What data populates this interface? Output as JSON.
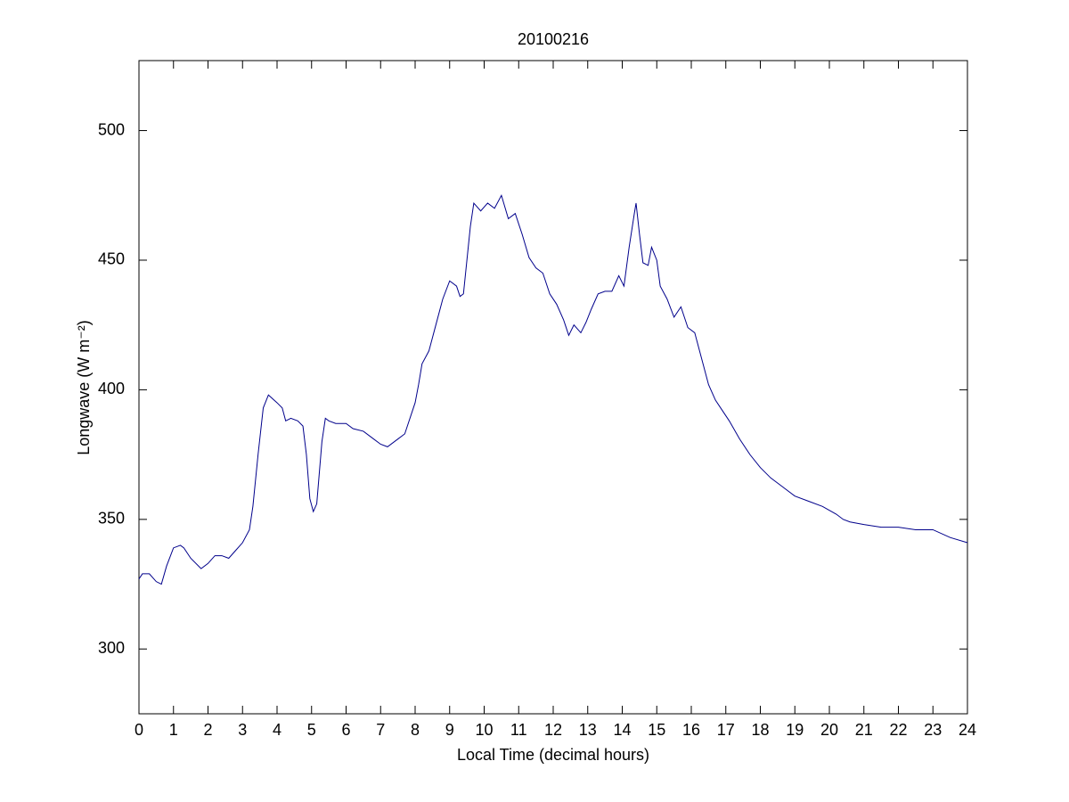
{
  "chart_data": {
    "type": "line",
    "title": "20100216",
    "xlabel": "Local Time (decimal hours)",
    "ylabel": "Longwave (W m⁻²)",
    "xlim": [
      0,
      24
    ],
    "ylim": [
      275,
      527
    ],
    "xticks": [
      0,
      1,
      2,
      3,
      4,
      5,
      6,
      7,
      8,
      9,
      10,
      11,
      12,
      13,
      14,
      15,
      16,
      17,
      18,
      19,
      20,
      21,
      22,
      23,
      24
    ],
    "yticks": [
      300,
      350,
      400,
      450,
      500
    ],
    "grid": false,
    "x": [
      0,
      0.1,
      0.3,
      0.5,
      0.65,
      0.8,
      1.0,
      1.2,
      1.3,
      1.5,
      1.8,
      2.0,
      2.2,
      2.4,
      2.6,
      2.8,
      3.0,
      3.2,
      3.3,
      3.45,
      3.6,
      3.75,
      4.0,
      4.15,
      4.25,
      4.4,
      4.6,
      4.75,
      4.85,
      4.95,
      5.05,
      5.15,
      5.3,
      5.4,
      5.5,
      5.7,
      6.0,
      6.2,
      6.5,
      6.8,
      7.0,
      7.2,
      7.5,
      7.7,
      7.9,
      8.0,
      8.1,
      8.2,
      8.4,
      8.6,
      8.8,
      9.0,
      9.2,
      9.3,
      9.4,
      9.5,
      9.6,
      9.7,
      9.9,
      10.1,
      10.3,
      10.5,
      10.7,
      10.9,
      11.1,
      11.3,
      11.5,
      11.7,
      11.9,
      12.1,
      12.3,
      12.45,
      12.6,
      12.8,
      12.95,
      13.1,
      13.3,
      13.5,
      13.7,
      13.9,
      14.05,
      14.2,
      14.35,
      14.4,
      14.5,
      14.6,
      14.75,
      14.85,
      15.0,
      15.1,
      15.3,
      15.5,
      15.7,
      15.9,
      16.1,
      16.3,
      16.5,
      16.7,
      16.9,
      17.1,
      17.4,
      17.7,
      18.0,
      18.3,
      18.6,
      19.0,
      19.4,
      19.8,
      20.2,
      20.4,
      20.6,
      21.0,
      21.5,
      22.0,
      22.5,
      23.0,
      23.5,
      24.0
    ],
    "series": [
      {
        "color": "#00008b",
        "values": [
          327,
          329,
          329,
          326,
          325,
          332,
          339,
          340,
          339,
          335,
          331,
          333,
          336,
          336,
          335,
          338,
          341,
          346,
          355,
          375,
          393,
          398,
          395,
          393,
          388,
          389,
          388,
          386,
          375,
          358,
          353,
          356,
          380,
          389,
          388,
          387,
          387,
          385,
          384,
          381,
          379,
          378,
          381,
          383,
          391,
          395,
          402,
          410,
          415,
          425,
          435,
          442,
          440,
          436,
          437,
          450,
          463,
          472,
          469,
          472,
          470,
          475,
          466,
          468,
          460,
          451,
          447,
          445,
          437,
          433,
          427,
          421,
          425,
          422,
          426,
          431,
          437,
          438,
          438,
          444,
          440,
          455,
          468,
          472,
          460,
          449,
          448,
          455,
          450,
          440,
          435,
          428,
          432,
          424,
          422,
          412,
          402,
          396,
          392,
          388,
          381,
          375,
          370,
          366,
          363,
          359,
          357,
          355,
          352,
          350,
          349,
          348,
          347,
          347,
          346,
          346,
          343,
          341
        ]
      }
    ]
  }
}
